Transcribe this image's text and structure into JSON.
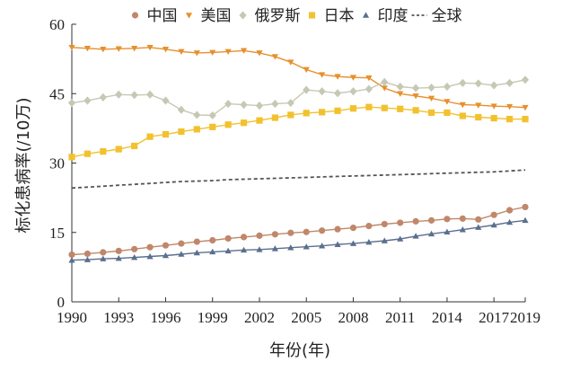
{
  "chart_data": {
    "type": "line",
    "xlabel": "年份(年)",
    "ylabel": "标化患病率(/10万)",
    "xlim": [
      1990,
      2019
    ],
    "ylim": [
      0,
      60
    ],
    "x_ticks": [
      1990,
      1993,
      1996,
      1999,
      2002,
      2005,
      2008,
      2011,
      2014,
      2017,
      2019
    ],
    "y_ticks": [
      0,
      15,
      30,
      45,
      60
    ],
    "grid": false,
    "legend_position": "top",
    "x": [
      1990,
      1991,
      1992,
      1993,
      1994,
      1995,
      1996,
      1997,
      1998,
      1999,
      2000,
      2001,
      2002,
      2003,
      2004,
      2005,
      2006,
      2007,
      2008,
      2009,
      2010,
      2011,
      2012,
      2013,
      2014,
      2015,
      2016,
      2017,
      2018,
      2019
    ],
    "series": [
      {
        "name": "中国",
        "color": "#c0876a",
        "marker": "circle",
        "dashed": false,
        "values": [
          10.2,
          10.4,
          10.7,
          11.0,
          11.4,
          11.8,
          12.2,
          12.6,
          13.0,
          13.3,
          13.7,
          14.0,
          14.3,
          14.6,
          14.9,
          15.1,
          15.4,
          15.7,
          16.0,
          16.4,
          16.8,
          17.1,
          17.4,
          17.6,
          17.9,
          18.0,
          17.8,
          18.8,
          19.8,
          20.5
        ]
      },
      {
        "name": "美国",
        "color": "#e6902e",
        "marker": "triangle-down",
        "dashed": false,
        "values": [
          55.0,
          54.8,
          54.6,
          54.7,
          54.8,
          55.0,
          54.6,
          54.1,
          53.8,
          53.9,
          54.1,
          54.3,
          53.8,
          53.0,
          51.8,
          50.2,
          49.1,
          48.7,
          48.5,
          48.4,
          46.2,
          45.0,
          44.5,
          44.0,
          43.3,
          42.6,
          42.5,
          42.3,
          42.2,
          42.0
        ]
      },
      {
        "name": "俄罗斯",
        "color": "#c5c9b3",
        "marker": "diamond",
        "dashed": false,
        "values": [
          43.0,
          43.5,
          44.2,
          44.8,
          44.7,
          44.8,
          43.5,
          41.5,
          40.4,
          40.3,
          42.8,
          42.6,
          42.4,
          42.8,
          43.0,
          45.8,
          45.5,
          45.1,
          45.5,
          46.0,
          47.5,
          46.5,
          46.2,
          46.3,
          46.5,
          47.3,
          47.2,
          46.8,
          47.3,
          48.0
        ]
      },
      {
        "name": "日本",
        "color": "#f2c12e",
        "marker": "square",
        "dashed": false,
        "values": [
          31.3,
          32.0,
          32.5,
          33.0,
          33.7,
          35.7,
          36.2,
          36.8,
          37.3,
          37.8,
          38.3,
          38.7,
          39.2,
          39.8,
          40.4,
          40.8,
          41.0,
          41.3,
          41.8,
          42.1,
          41.9,
          41.7,
          41.4,
          40.9,
          40.9,
          40.2,
          39.9,
          39.7,
          39.5,
          39.5
        ]
      },
      {
        "name": "印度",
        "color": "#5b6f8e",
        "marker": "triangle-up",
        "dashed": false,
        "values": [
          9.0,
          9.1,
          9.3,
          9.4,
          9.6,
          9.8,
          10.0,
          10.3,
          10.6,
          10.8,
          11.0,
          11.2,
          11.3,
          11.5,
          11.7,
          11.9,
          12.1,
          12.4,
          12.6,
          12.9,
          13.2,
          13.6,
          14.2,
          14.7,
          15.1,
          15.6,
          16.1,
          16.6,
          17.2,
          17.6
        ]
      },
      {
        "name": "全球",
        "color": "#555555",
        "marker": "none",
        "dashed": true,
        "values": [
          24.6,
          24.8,
          25.0,
          25.2,
          25.4,
          25.6,
          25.8,
          26.0,
          26.1,
          26.2,
          26.4,
          26.5,
          26.6,
          26.7,
          26.8,
          26.9,
          27.0,
          27.1,
          27.2,
          27.3,
          27.4,
          27.5,
          27.6,
          27.7,
          27.8,
          27.9,
          28.0,
          28.1,
          28.3,
          28.5
        ]
      }
    ]
  }
}
